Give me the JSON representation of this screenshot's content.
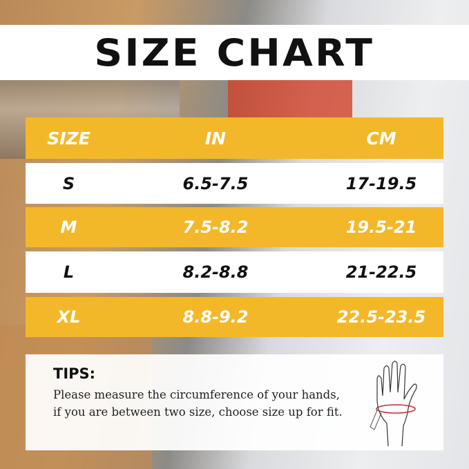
{
  "title": "SIZE CHART",
  "table": {
    "headers": [
      "SIZE",
      "IN",
      "CM"
    ],
    "rows": [
      {
        "size": "S",
        "in": "6.5-7.5",
        "cm": "17-19.5"
      },
      {
        "size": "M",
        "in": "7.5-8.2",
        "cm": "19.5-21"
      },
      {
        "size": "L",
        "in": "8.2-8.8",
        "cm": "21-22.5"
      },
      {
        "size": "XL",
        "in": "8.8-9.2",
        "cm": "22.5-23.5"
      }
    ]
  },
  "tips": {
    "heading": "TIPS:",
    "text": "Please measure the circumference of your hands, if you are between two size, choose size up for fit."
  },
  "colors": {
    "accent": "#f3b82a",
    "row_light": "#ffffff",
    "text": "#111111"
  },
  "icons": {
    "hand": "hand-measure-icon"
  }
}
